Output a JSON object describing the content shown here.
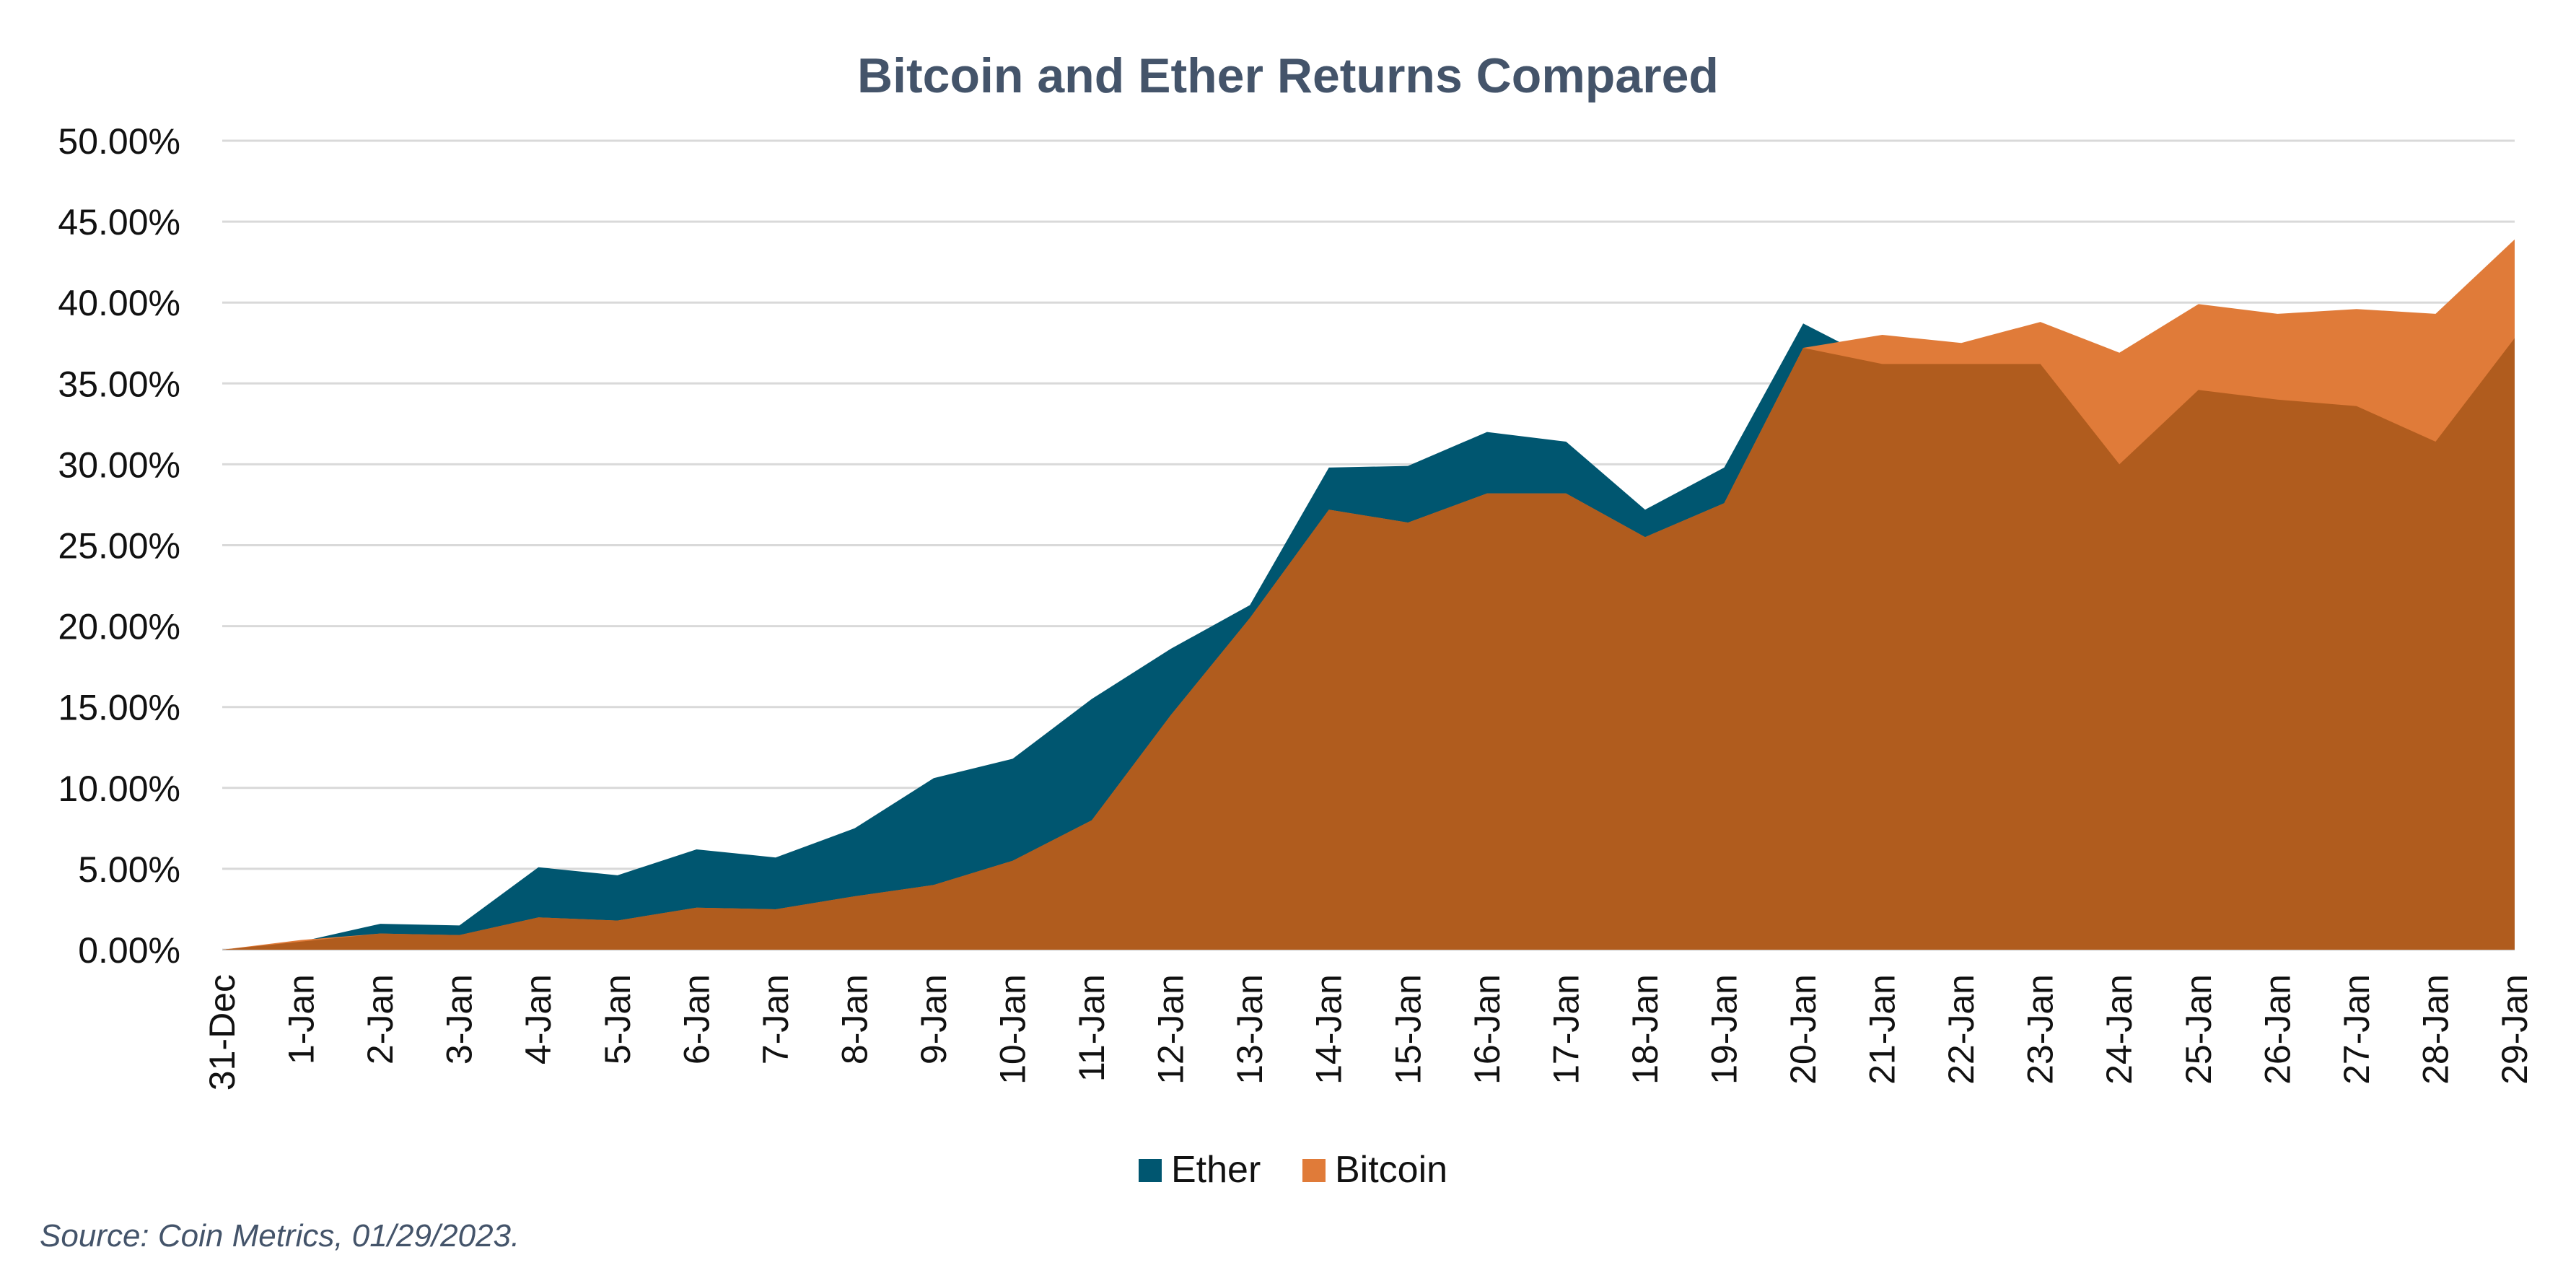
{
  "chart_data": {
    "type": "area",
    "title": "Bitcoin and Ether Returns Compared",
    "xlabel": "",
    "ylabel": "",
    "categories": [
      "31-Dec",
      "1-Jan",
      "2-Jan",
      "3-Jan",
      "4-Jan",
      "5-Jan",
      "6-Jan",
      "7-Jan",
      "8-Jan",
      "9-Jan",
      "10-Jan",
      "11-Jan",
      "12-Jan",
      "13-Jan",
      "14-Jan",
      "15-Jan",
      "16-Jan",
      "17-Jan",
      "18-Jan",
      "19-Jan",
      "20-Jan",
      "21-Jan",
      "22-Jan",
      "23-Jan",
      "24-Jan",
      "25-Jan",
      "26-Jan",
      "27-Jan",
      "28-Jan",
      "29-Jan"
    ],
    "series": [
      {
        "name": "Ether",
        "color": "#005670",
        "values": [
          0,
          0.5,
          1.6,
          1.5,
          5.1,
          4.6,
          6.2,
          5.7,
          7.5,
          10.6,
          11.8,
          15.5,
          18.6,
          21.3,
          29.8,
          29.9,
          32.0,
          31.4,
          27.2,
          29.8,
          38.7,
          36.2,
          36.2,
          36.2,
          30.0,
          34.6,
          34.0,
          33.6,
          31.4,
          37.8
        ]
      },
      {
        "name": "Bitcoin",
        "color": "#e07b39",
        "values": [
          0,
          0.6,
          1.0,
          0.9,
          2.0,
          1.8,
          2.6,
          2.5,
          3.3,
          4.0,
          5.5,
          8.0,
          14.5,
          20.5,
          27.2,
          26.4,
          28.2,
          28.2,
          25.5,
          27.6,
          37.2,
          38.0,
          37.5,
          38.8,
          36.9,
          39.9,
          39.3,
          39.6,
          39.3,
          43.9
        ]
      }
    ],
    "overlap_color": "#b05c1e",
    "ylim": [
      0,
      50
    ],
    "yticks": [
      "0.00%",
      "5.00%",
      "10.00%",
      "15.00%",
      "20.00%",
      "25.00%",
      "30.00%",
      "35.00%",
      "40.00%",
      "45.00%",
      "50.00%"
    ],
    "grid": true,
    "legend": "bottom-center"
  },
  "source": "Source: Coin Metrics, 01/29/2023."
}
